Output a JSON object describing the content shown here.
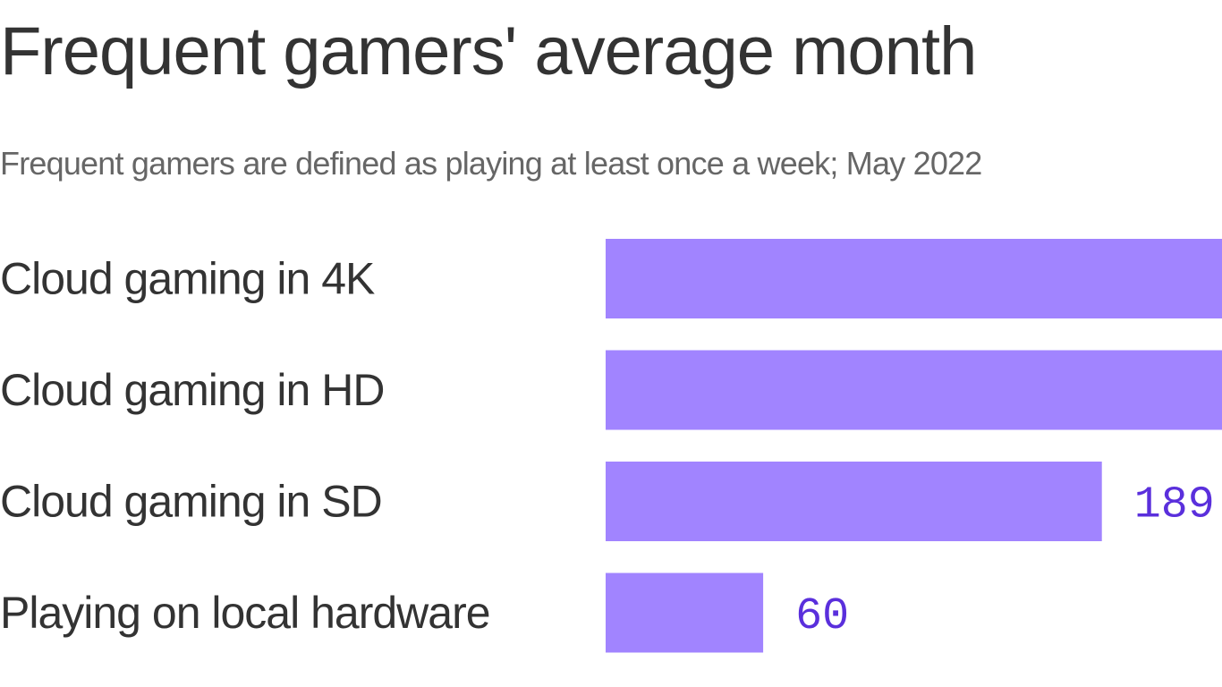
{
  "chart_data": {
    "type": "bar",
    "orientation": "horizontal",
    "title": "Frequent gamers' average month",
    "subtitle": "Frequent gamers are defined as playing at least once a week; May 2022",
    "categories": [
      "Cloud gaming in 4K",
      "Cloud gaming in HD",
      "Cloud gaming in SD",
      "Playing on local hardware"
    ],
    "values": [
      null,
      null,
      189,
      60
    ],
    "value_labels": [
      "",
      "",
      "189",
      "60"
    ],
    "bar_color": "#a184ff",
    "label_color": "#5a2fdc",
    "grid": false,
    "legend": "none"
  }
}
